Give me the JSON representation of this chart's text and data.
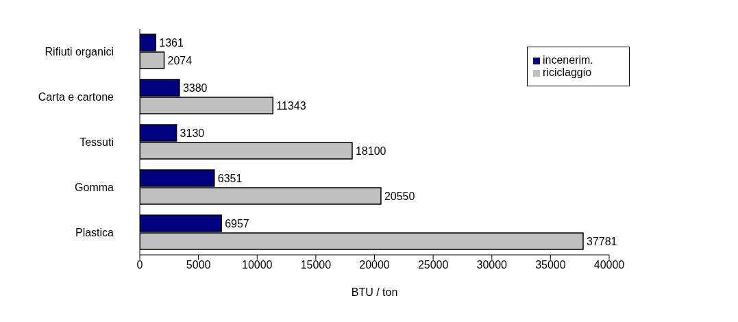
{
  "chart_data": {
    "type": "bar",
    "orientation": "horizontal",
    "xlabel": "BTU / ton",
    "categories": [
      "Rifiuti organici",
      "Carta e cartone",
      "Tessuti",
      "Gomma",
      "Plastica"
    ],
    "series": [
      {
        "name": "incenerim.",
        "color": "#000080",
        "values": [
          1361,
          3380,
          3130,
          6351,
          6957
        ]
      },
      {
        "name": "riciclaggio",
        "color": "#c0c0c0",
        "values": [
          2074,
          11343,
          18100,
          20550,
          37781
        ]
      }
    ],
    "xlim": [
      0,
      40000
    ],
    "xticks": [
      0,
      5000,
      10000,
      15000,
      20000,
      25000,
      30000,
      35000,
      40000
    ],
    "data_labels": true,
    "grid": false,
    "legend": "top right"
  }
}
